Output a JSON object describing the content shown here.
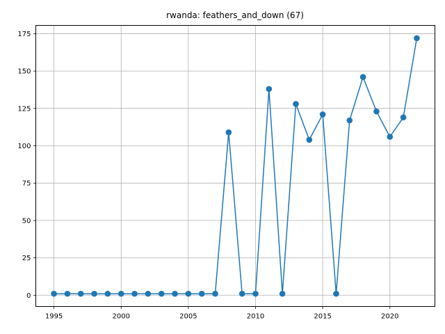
{
  "chart_data": {
    "type": "line",
    "title": "rwanda: feathers_and_down (67)",
    "xlabel": "",
    "ylabel": "",
    "grid": true,
    "color": "#1f77b4",
    "marker": "circle",
    "x": [
      1995,
      1996,
      1997,
      1998,
      1999,
      2000,
      2001,
      2002,
      2003,
      2004,
      2005,
      2006,
      2007,
      2008,
      2009,
      2010,
      2011,
      2012,
      2013,
      2014,
      2015,
      2016,
      2017,
      2018,
      2019,
      2020,
      2021,
      2022
    ],
    "y": [
      1,
      1,
      1,
      1,
      1,
      1,
      1,
      1,
      1,
      1,
      1,
      1,
      1,
      109,
      1,
      1,
      138,
      1,
      128,
      104,
      121,
      1,
      117,
      146,
      123,
      106,
      119,
      172
    ],
    "xlim": [
      1993.65,
      2023.35
    ],
    "ylim": [
      -7.55,
      180.55
    ],
    "xticks": [
      1995,
      2000,
      2005,
      2010,
      2015,
      2020
    ],
    "yticks": [
      0,
      25,
      50,
      75,
      100,
      125,
      150,
      175
    ]
  }
}
